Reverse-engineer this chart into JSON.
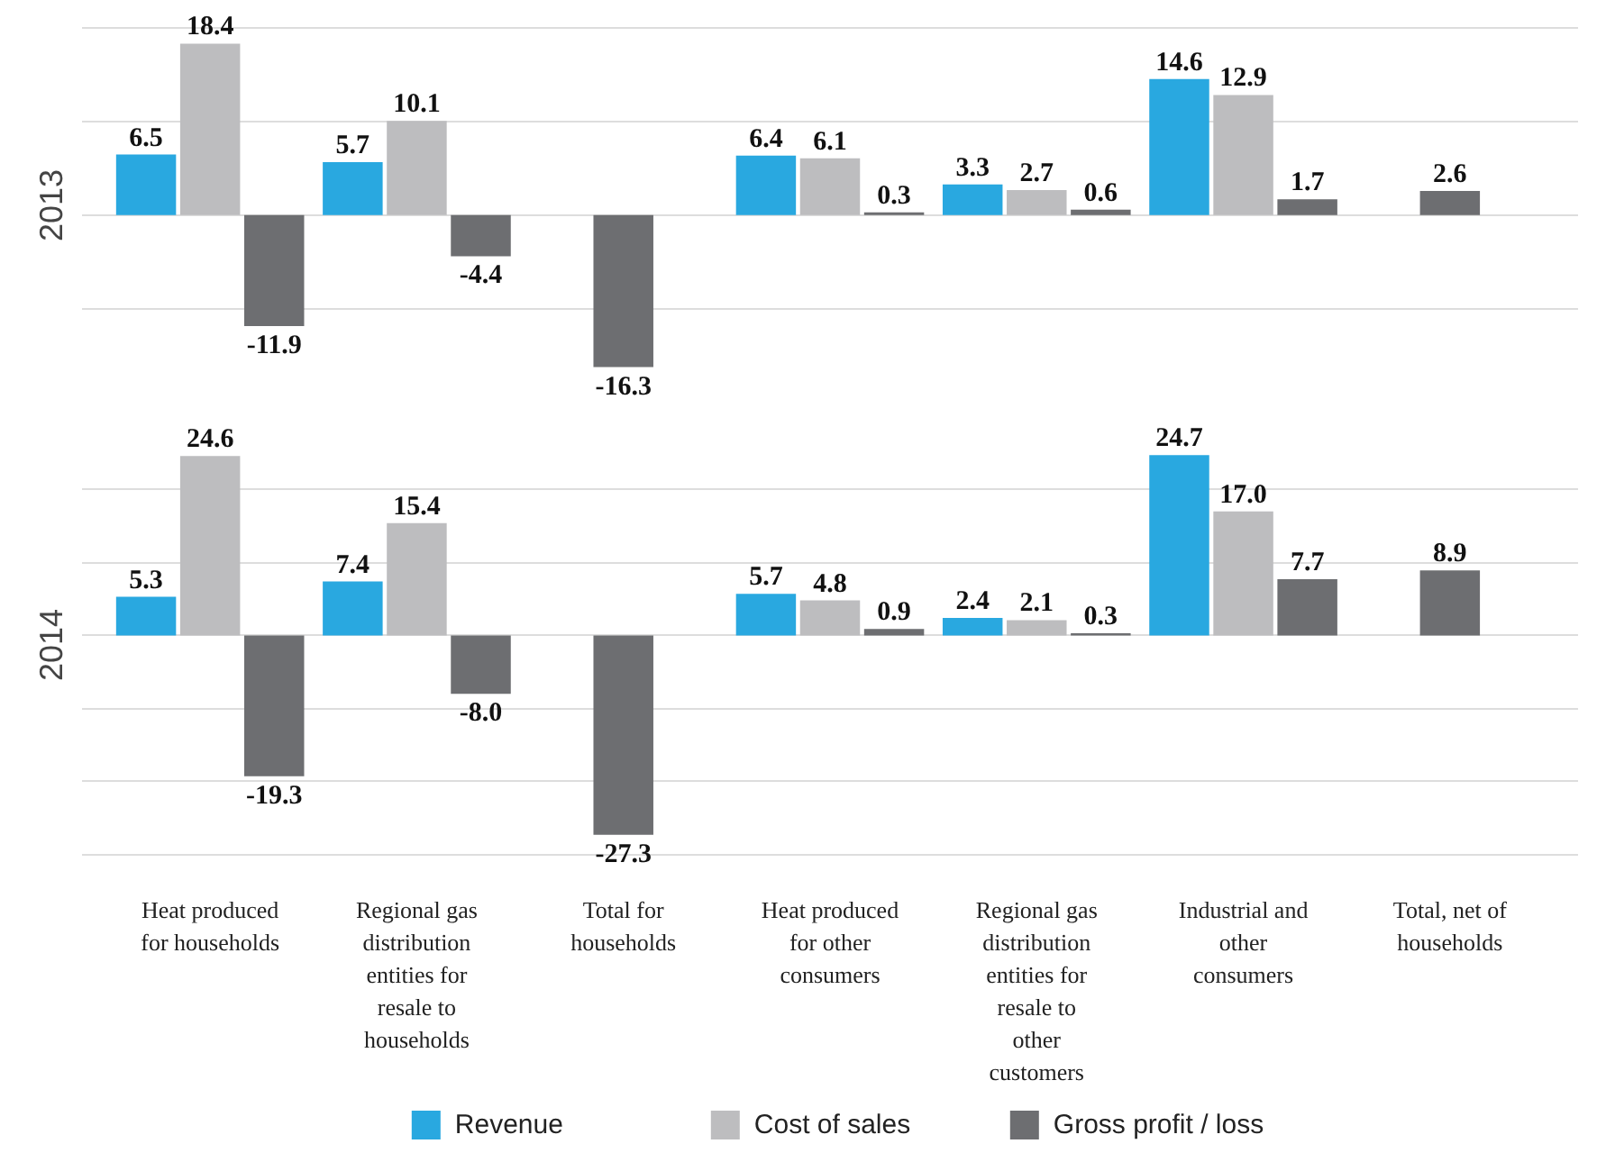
{
  "chart_data": [
    {
      "type": "bar",
      "ylabel": "2013",
      "categories": [
        "Heat produced for households",
        "Regional gas distribution entities for resale to households",
        "Total for households",
        "Heat produced for other consumers",
        "Regional gas distribution entities for resale to other customers",
        "Industrial and other consumers",
        "Total, net of households"
      ],
      "series": [
        {
          "color": "#29a8e0",
          "values": [
            6.5,
            5.7,
            null,
            6.4,
            3.3,
            14.6,
            null
          ],
          "value_labels": [
            "6.5",
            "5.7",
            null,
            "6.4",
            "3.3",
            "14.6",
            null
          ]
        },
        {
          "color": "#bdbdbf",
          "values": [
            18.4,
            10.1,
            null,
            6.1,
            2.7,
            12.9,
            null
          ],
          "value_labels": [
            "18.4",
            "10.1",
            null,
            "6.1",
            "2.7",
            "12.9",
            null
          ]
        },
        {
          "color": "#6d6e71",
          "values": [
            -11.9,
            -4.4,
            -16.3,
            0.3,
            0.6,
            1.7,
            2.6
          ],
          "value_labels": [
            "-11.9",
            "-4.4",
            "-16.3",
            "0.3",
            "0.6",
            "1.7",
            "2.6"
          ]
        }
      ],
      "yticks": [
        {
          "value": -10,
          "label": null
        },
        {
          "value": 0,
          "label": null
        },
        {
          "value": 10,
          "label": null
        },
        {
          "value": 20,
          "label": null
        }
      ],
      "grid": "y",
      "tick_labels": false
    },
    {
      "type": "bar",
      "ylabel": "2014",
      "categories": [
        "Heat produced for households",
        "Regional gas distribution entities for resale to households",
        "Total for households",
        "Heat produced for other consumers",
        "Regional gas distribution entities for resale to other customers",
        "Industrial and other consumers",
        "Total, net of households"
      ],
      "series": [
        {
          "name": "Revenue",
          "color": "#29a8e0",
          "values": [
            5.3,
            7.4,
            null,
            5.7,
            2.4,
            24.7,
            null
          ],
          "value_labels": [
            "5.3",
            "7.4",
            null,
            "5.7",
            "2.4",
            "24.7",
            null
          ]
        },
        {
          "name": "Cost of sales",
          "color": "#bdbdbf",
          "values": [
            24.6,
            15.4,
            null,
            4.8,
            2.1,
            17.0,
            null
          ],
          "value_labels": [
            "24.6",
            "15.4",
            null,
            "4.8",
            "2.1",
            "17.0",
            null
          ]
        },
        {
          "name": "Gross profit / loss",
          "color": "#6d6e71",
          "values": [
            -19.3,
            -8.0,
            -27.3,
            0.9,
            0.3,
            7.7,
            8.9
          ],
          "value_labels": [
            "-19.3",
            "-8.0",
            "-27.3",
            "0.9",
            "0.3",
            "7.7",
            "8.9"
          ]
        }
      ],
      "yticks": [
        {
          "value": -30,
          "label": null
        },
        {
          "value": -20,
          "label": null
        },
        {
          "value": -10,
          "label": null
        },
        {
          "value": 0,
          "label": null
        },
        {
          "value": 10,
          "label": null
        },
        {
          "value": 20,
          "label": null
        }
      ],
      "grid": "y",
      "tick_labels": "x",
      "legend": "bottom"
    }
  ]
}
